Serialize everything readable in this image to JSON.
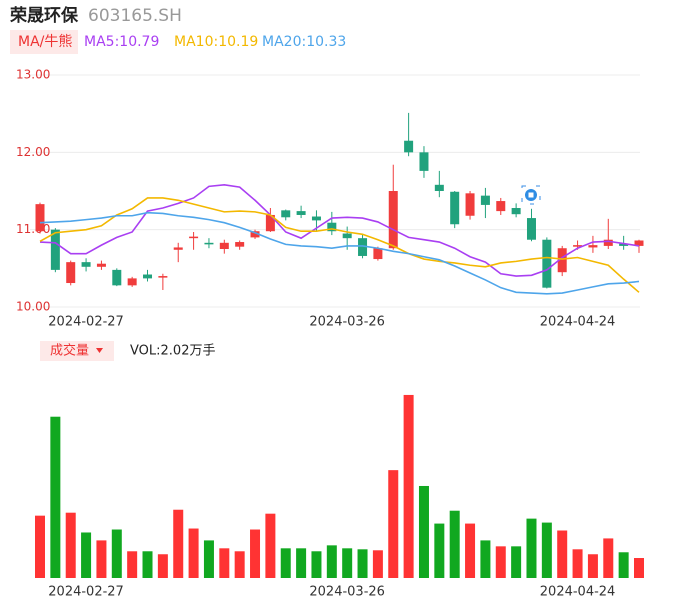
{
  "header": {
    "name": "荣晟环保",
    "code": "603165.SH",
    "ma_button": "MA/牛熊",
    "vol_button": "成交量"
  },
  "chart_data": [
    {
      "type": "candlestick",
      "categories": [
        null,
        null,
        null,
        "2024-02-27",
        null,
        null,
        null,
        null,
        null,
        null,
        null,
        null,
        null,
        null,
        null,
        null,
        null,
        null,
        null,
        null,
        "2024-03-26",
        null,
        null,
        null,
        null,
        null,
        null,
        null,
        null,
        null,
        null,
        null,
        null,
        null,
        null,
        "2024-04-24",
        null,
        null,
        null,
        null
      ],
      "open": [
        10.98,
        11.0,
        10.31,
        10.58,
        10.52,
        10.48,
        10.28,
        10.42,
        10.38,
        10.74,
        10.89,
        10.83,
        10.75,
        10.78,
        10.9,
        10.98,
        11.25,
        11.24,
        11.17,
        11.09,
        10.95,
        10.89,
        10.62,
        10.76,
        12.15,
        12.0,
        11.58,
        11.49,
        11.18,
        11.44,
        11.24,
        11.28,
        11.15,
        10.87,
        10.45,
        10.78,
        10.77,
        10.79,
        10.82,
        10.79
      ],
      "high": [
        11.35,
        11.02,
        10.6,
        10.63,
        10.6,
        10.5,
        10.39,
        10.48,
        10.43,
        10.83,
        10.97,
        10.89,
        10.87,
        10.86,
        11.0,
        11.28,
        11.26,
        11.31,
        11.25,
        11.23,
        11.04,
        10.94,
        10.78,
        11.84,
        12.51,
        12.08,
        11.76,
        11.5,
        11.5,
        11.54,
        11.41,
        11.34,
        11.27,
        10.9,
        10.79,
        10.86,
        10.92,
        11.14,
        10.92,
        10.87
      ],
      "low": [
        10.95,
        10.45,
        10.28,
        10.46,
        10.48,
        10.27,
        10.26,
        10.33,
        10.22,
        10.58,
        10.74,
        10.76,
        10.69,
        10.74,
        10.88,
        10.97,
        11.12,
        11.15,
        10.97,
        10.93,
        10.74,
        10.63,
        10.6,
        10.74,
        11.95,
        11.67,
        11.42,
        11.02,
        11.13,
        11.15,
        11.19,
        11.16,
        10.85,
        10.24,
        10.4,
        10.74,
        10.7,
        10.75,
        10.74,
        10.7
      ],
      "close": [
        11.33,
        10.48,
        10.58,
        10.52,
        10.56,
        10.28,
        10.37,
        10.37,
        10.4,
        10.77,
        10.91,
        10.81,
        10.83,
        10.84,
        10.98,
        11.19,
        11.16,
        11.19,
        11.12,
        10.98,
        10.89,
        10.66,
        10.76,
        11.5,
        12.0,
        11.76,
        11.5,
        11.07,
        11.47,
        11.32,
        11.37,
        11.2,
        10.87,
        10.25,
        10.76,
        10.8,
        10.8,
        10.87,
        10.79,
        10.86
      ],
      "up_color": "#f03c3c",
      "down_color": "#21a27d",
      "series": [
        {
          "name": "MA5:10.79",
          "color": "#a93ff2",
          "values": [
            10.84,
            10.83,
            10.69,
            10.69,
            10.8,
            10.9,
            10.97,
            11.24,
            11.28,
            11.34,
            11.41,
            11.56,
            11.58,
            11.55,
            11.38,
            11.19,
            10.97,
            10.89,
            11.02,
            11.15,
            11.16,
            11.15,
            11.1,
            11.0,
            10.9,
            10.87,
            10.84,
            10.76,
            10.65,
            10.58,
            10.43,
            10.4,
            10.41,
            10.48,
            10.64,
            10.76,
            10.84,
            10.85,
            10.82,
            10.79
          ]
        },
        {
          "name": "MA10:10.19",
          "color": "#f3b800",
          "values": [
            10.85,
            10.96,
            10.98,
            11.0,
            11.05,
            11.19,
            11.27,
            11.41,
            11.41,
            11.38,
            11.33,
            11.28,
            11.23,
            11.24,
            11.23,
            11.19,
            11.03,
            10.98,
            10.98,
            11.01,
            10.97,
            10.94,
            10.87,
            10.79,
            10.69,
            10.62,
            10.59,
            10.57,
            10.54,
            10.52,
            10.57,
            10.59,
            10.62,
            10.64,
            10.62,
            10.64,
            10.59,
            10.54,
            10.36,
            10.19
          ]
        },
        {
          "name": "MA20:10.33",
          "color": "#4ea5ea",
          "values": [
            11.09,
            11.1,
            11.11,
            11.13,
            11.15,
            11.18,
            11.18,
            11.22,
            11.21,
            11.18,
            11.16,
            11.13,
            11.09,
            11.03,
            10.96,
            10.88,
            10.81,
            10.79,
            10.78,
            10.76,
            10.79,
            10.79,
            10.76,
            10.72,
            10.69,
            10.65,
            10.61,
            10.53,
            10.44,
            10.35,
            10.25,
            10.19,
            10.18,
            10.17,
            10.18,
            10.22,
            10.26,
            10.3,
            10.31,
            10.33
          ]
        }
      ],
      "ylim": [
        10,
        13
      ],
      "yticks": [
        {
          "value": 10,
          "label": "10.00"
        },
        {
          "value": 11,
          "label": "11.00"
        },
        {
          "value": 12,
          "label": "12.00"
        },
        {
          "value": 13,
          "label": "13.00"
        }
      ],
      "grid": true
    },
    {
      "type": "bar",
      "label": "VOL:2.02万手",
      "categories": [
        null,
        null,
        null,
        "2024-02-27",
        null,
        null,
        null,
        null,
        null,
        null,
        null,
        null,
        null,
        null,
        null,
        null,
        null,
        null,
        null,
        null,
        "2024-03-26",
        null,
        null,
        null,
        null,
        null,
        null,
        null,
        null,
        null,
        null,
        null,
        null,
        null,
        null,
        "2024-04-24",
        null,
        null,
        null,
        null
      ],
      "values": [
        6.3,
        16.3,
        6.6,
        4.6,
        3.8,
        4.9,
        2.7,
        2.7,
        2.4,
        6.9,
        5.0,
        3.8,
        3.0,
        2.7,
        4.9,
        6.5,
        3.0,
        3.0,
        2.7,
        3.3,
        3.0,
        2.9,
        2.8,
        10.9,
        18.5,
        9.3,
        5.5,
        6.8,
        5.5,
        3.8,
        3.2,
        3.2,
        6.0,
        5.6,
        4.8,
        2.9,
        2.4,
        4.0,
        2.6,
        2.02
      ],
      "colors": [
        "#ff3333",
        "#11a820",
        "#ff3333",
        "#11a820",
        "#ff3333",
        "#11a820",
        "#ff3333",
        "#11a820",
        "#ff3333",
        "#ff3333",
        "#ff3333",
        "#11a820",
        "#ff3333",
        "#ff3333",
        "#ff3333",
        "#ff3333",
        "#11a820",
        "#11a820",
        "#11a820",
        "#11a820",
        "#11a820",
        "#11a820",
        "#ff3333",
        "#ff3333",
        "#ff3333",
        "#11a820",
        "#11a820",
        "#11a820",
        "#ff3333",
        "#11a820",
        "#ff3333",
        "#11a820",
        "#11a820",
        "#11a820",
        "#ff3333",
        "#ff3333",
        "#ff3333",
        "#ff3333",
        "#11a820",
        "#ff3333"
      ],
      "ylim": [
        0,
        19
      ]
    }
  ]
}
